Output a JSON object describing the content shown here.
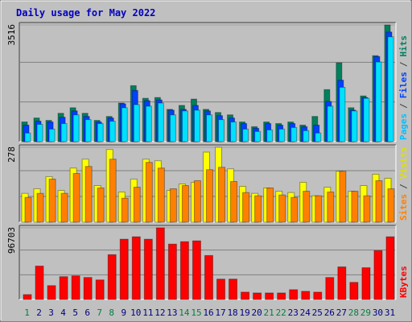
{
  "chart_data": {
    "type": "bar",
    "title": "Daily usage for May 2022",
    "categories": [
      "1",
      "2",
      "3",
      "4",
      "5",
      "6",
      "7",
      "8",
      "9",
      "10",
      "11",
      "12",
      "13",
      "14",
      "15",
      "16",
      "17",
      "18",
      "19",
      "20",
      "21",
      "22",
      "23",
      "24",
      "25",
      "26",
      "27",
      "28",
      "29",
      "30",
      "31"
    ],
    "label_colors": [
      "#008040",
      "#000080",
      "#000080",
      "#000080",
      "#000080",
      "#000080",
      "#008040",
      "#008040",
      "#000080",
      "#000080",
      "#000080",
      "#000080",
      "#000080",
      "#008040",
      "#008040",
      "#000080",
      "#000080",
      "#000080",
      "#000080",
      "#000080",
      "#008040",
      "#008040",
      "#000080",
      "#000080",
      "#000080",
      "#000080",
      "#000080",
      "#008040",
      "#008040",
      "#000080",
      "#000080"
    ],
    "separator": "/",
    "grid": true,
    "panels": [
      {
        "ylim": [
          0,
          3516
        ],
        "yticks": [
          3516
        ],
        "series": [
          {
            "name": "Hits",
            "color": "#00805c",
            "text_color": "#008060",
            "values": [
              594,
              713,
              641,
              855,
              1022,
              855,
              641,
              760,
              1164,
              1687,
              1307,
              1331,
              974,
              1093,
              1283,
              974,
              879,
              808,
              594,
              451,
              594,
              546,
              594,
              499,
              760,
              1568,
              2376,
              1022,
              1378,
              2590,
              3516
            ]
          },
          {
            "name": "Files",
            "color": "#0040ff",
            "text_color": "#0040ff",
            "values": [
              499,
              618,
              594,
              737,
              927,
              760,
              594,
              713,
              1140,
              1544,
              1236,
              1259,
              950,
              974,
              1093,
              927,
              784,
              713,
              546,
              404,
              546,
              499,
              546,
              451,
              499,
              1212,
              1853,
              950,
              1331,
              2566,
              3303
            ]
          },
          {
            "name": "Pages",
            "color": "#00e0ff",
            "text_color": "#00c0ff",
            "values": [
              261,
              523,
              380,
              546,
              808,
              665,
              546,
              618,
              1022,
              1117,
              1069,
              1164,
              808,
              927,
              950,
              808,
              665,
              594,
              380,
              309,
              356,
              380,
              428,
              333,
              261,
              1069,
              1639,
              927,
              1307,
              2400,
              3160
            ]
          }
        ]
      },
      {
        "ylim": [
          0,
          278
        ],
        "yticks": [
          278
        ],
        "series": [
          {
            "name": "Visits",
            "color": "#ffff00",
            "text_color": "#e0e000",
            "values": [
              107,
              124,
              169,
              118,
              201,
              234,
              136,
              270,
              112,
              160,
              234,
              228,
              118,
              142,
              148,
              260,
              278,
              198,
              133,
              107,
              127,
              115,
              110,
              148,
              98,
              130,
              189,
              115,
              136,
              178,
              163
            ]
          },
          {
            "name": "Sites",
            "color": "#ff8000",
            "text_color": "#ff8000",
            "values": [
              92,
              107,
              160,
              107,
              181,
              207,
              127,
              234,
              89,
              130,
              222,
              201,
              124,
              136,
              154,
              195,
              204,
              151,
              110,
              98,
              127,
              101,
              92,
              115,
              98,
              112,
              189,
              115,
              98,
              154,
              124
            ]
          }
        ]
      },
      {
        "ylim": [
          0,
          96703
        ],
        "yticks": [
          96703
        ],
        "series": [
          {
            "name": "KBytes",
            "color": "#ff0000",
            "text_color": "#ff0000",
            "values": [
              6594,
              45059,
              18683,
              30772,
              31871,
              29673,
              26376,
              60445,
              81326,
              84623,
              81326,
              96703,
              74732,
              78029,
              79128,
              59346,
              27475,
              27475,
              9891,
              8792,
              8792,
              8792,
              13188,
              10990,
              9891,
              29673,
              43960,
              23079,
              42861,
              65940,
              84623
            ]
          }
        ]
      }
    ]
  }
}
